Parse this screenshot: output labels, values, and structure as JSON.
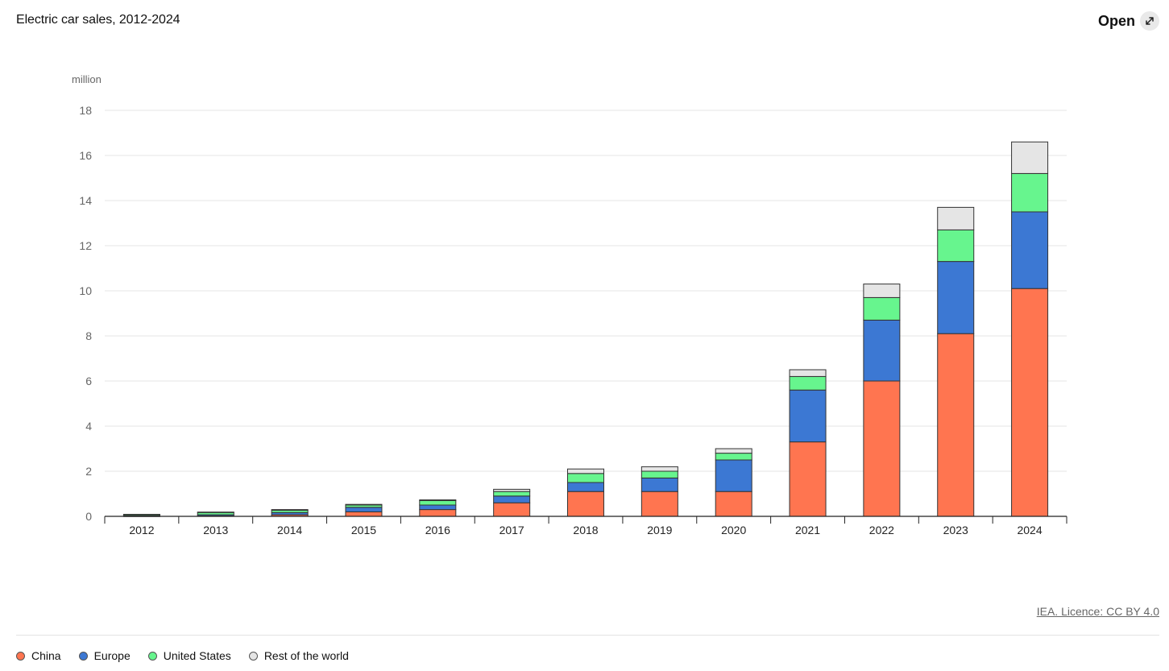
{
  "header": {
    "title": "Electric car sales, 2012-2024",
    "open_label": "Open"
  },
  "footer": {
    "licence": "IEA. Licence: CC BY 4.0"
  },
  "chart_data": {
    "type": "bar",
    "stacked": true,
    "title": "Electric car sales, 2012-2024",
    "ylabel": "million",
    "xlabel": "",
    "ylim": [
      0,
      18
    ],
    "yticks": [
      0,
      2,
      4,
      6,
      8,
      10,
      12,
      14,
      16,
      18
    ],
    "grid": true,
    "legend_position": "bottom-left",
    "categories": [
      "2012",
      "2013",
      "2014",
      "2015",
      "2016",
      "2017",
      "2018",
      "2019",
      "2020",
      "2021",
      "2022",
      "2023",
      "2024"
    ],
    "series": [
      {
        "name": "China",
        "color": "#ff7550",
        "values": [
          0.01,
          0.02,
          0.07,
          0.2,
          0.3,
          0.6,
          1.1,
          1.1,
          1.1,
          3.3,
          6.0,
          8.1,
          10.1
        ]
      },
      {
        "name": "Europe",
        "color": "#3c78d3",
        "values": [
          0.02,
          0.05,
          0.1,
          0.2,
          0.2,
          0.3,
          0.4,
          0.6,
          1.4,
          2.3,
          2.7,
          3.2,
          3.4
        ]
      },
      {
        "name": "United States",
        "color": "#67f58e",
        "values": [
          0.05,
          0.1,
          0.1,
          0.1,
          0.2,
          0.2,
          0.4,
          0.3,
          0.3,
          0.6,
          1.0,
          1.4,
          1.7
        ]
      },
      {
        "name": "Rest of the world",
        "color": "#e5e5e5",
        "values": [
          0.01,
          0.02,
          0.03,
          0.03,
          0.03,
          0.1,
          0.2,
          0.2,
          0.2,
          0.3,
          0.6,
          1.0,
          1.4
        ]
      }
    ]
  }
}
